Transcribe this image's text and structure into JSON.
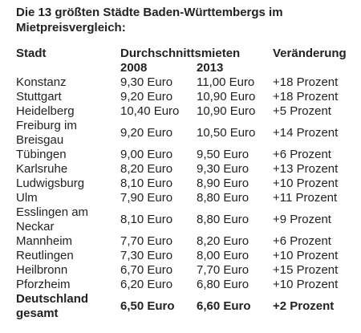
{
  "title": "Die 13 größten Städte Baden-Württembergs im Mietpreisvergleich:",
  "table": {
    "header": {
      "city": "Stadt",
      "group": "Durchschnittsmieten",
      "change": "Veränderung",
      "year1": "2008",
      "year2": "2013"
    },
    "rows": [
      [
        "Konstanz",
        "9,30 Euro",
        "11,00 Euro",
        "+18 Prozent"
      ],
      [
        "Stuttgart",
        "9,20 Euro",
        "10,90 Euro",
        "+18 Prozent"
      ],
      [
        "Heidelberg",
        "10,40 Euro",
        "10,90 Euro",
        "+5 Prozent"
      ],
      [
        "Freiburg im Breisgau",
        "9,20 Euro",
        "10,50 Euro",
        "+14 Prozent"
      ],
      [
        "Tübingen",
        "9,00 Euro",
        "9,50 Euro",
        "+6 Prozent"
      ],
      [
        "Karlsruhe",
        "8,20 Euro",
        "9,30 Euro",
        "+13 Prozent"
      ],
      [
        "Ludwigsburg",
        "8,10 Euro",
        "8,90 Euro",
        "+10 Prozent"
      ],
      [
        "Ulm",
        "7,90 Euro",
        "8,80 Euro",
        "+11 Prozent"
      ],
      [
        "Esslingen am Neckar",
        "8,10 Euro",
        "8,80 Euro",
        "+9 Prozent"
      ],
      [
        "Mannheim",
        "7,70 Euro",
        "8,20 Euro",
        "+6 Prozent"
      ],
      [
        "Reutlingen",
        "7,30 Euro",
        "8,00 Euro",
        "+10 Prozent"
      ],
      [
        "Heilbronn",
        "6,70 Euro",
        "7,70 Euro",
        "+15 Prozent"
      ],
      [
        "Pforzheim",
        "6,20 Euro",
        "6,80 Euro",
        "+10 Prozent"
      ]
    ],
    "total": [
      "Deutschland gesamt",
      "6,50 Euro",
      "6,60 Euro",
      "+2 Prozent"
    ]
  }
}
